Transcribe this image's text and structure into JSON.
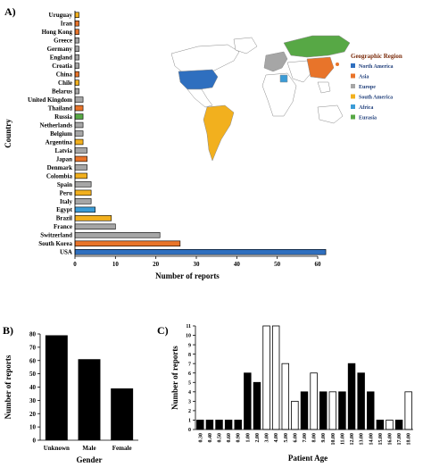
{
  "colors": {
    "North America": "#2f6fbf",
    "Asia": "#e8742a",
    "Europe": "#a6a6a6",
    "South America": "#f2b01e",
    "Africa": "#3b9bd6",
    "Eurasia": "#57a845"
  },
  "charts": [
    {
      "panel": "A)",
      "type": "bar",
      "orientation": "horizontal",
      "xlabel": "Number of reports",
      "ylabel": "Country",
      "xlim": [
        0,
        60
      ],
      "xticks": [
        0,
        10,
        20,
        30,
        40,
        50,
        60
      ],
      "categories": [
        "Uruguay",
        "Iran",
        "Hong Kong",
        "Greece",
        "Germany",
        "England",
        "Croatia",
        "China",
        "Chile",
        "Belarus",
        "United Kingdom",
        "Thailand",
        "Russia",
        "Netherlands",
        "Belgium",
        "Argentina",
        "Latvia",
        "Japan",
        "Denmark",
        "Colombia",
        "Spain",
        "Peru",
        "Italy",
        "Egypt",
        "Brazil",
        "France",
        "Switzerland",
        "South Korea",
        "USA"
      ],
      "values": [
        1,
        1,
        1,
        1,
        1,
        1,
        1,
        1,
        1,
        1,
        2,
        2,
        2,
        2,
        2,
        2,
        3,
        3,
        3,
        3,
        4,
        4,
        4,
        5,
        9,
        10,
        21,
        26,
        62
      ],
      "regions": [
        "South America",
        "Asia",
        "Asia",
        "Europe",
        "Europe",
        "Europe",
        "Europe",
        "Asia",
        "South America",
        "Europe",
        "Europe",
        "Asia",
        "Eurasia",
        "Europe",
        "Europe",
        "South America",
        "Europe",
        "Asia",
        "Europe",
        "South America",
        "Europe",
        "South America",
        "Europe",
        "Africa",
        "South America",
        "Europe",
        "Europe",
        "Asia",
        "North America"
      ],
      "legend": {
        "title": "Geographic Region",
        "entries": [
          "North America",
          "Asia",
          "Europe",
          "South America",
          "Africa",
          "Eurasia"
        ]
      }
    },
    {
      "panel": "B)",
      "type": "bar",
      "xlabel": "Gender",
      "ylabel": "Number of reports",
      "ylim": [
        0,
        80
      ],
      "yticks": [
        0,
        10,
        20,
        30,
        40,
        50,
        60,
        70,
        80
      ],
      "categories": [
        "Unknown",
        "Male",
        "Female"
      ],
      "values": [
        79,
        61,
        39
      ]
    },
    {
      "panel": "C)",
      "type": "bar",
      "xlabel": "Patient Age",
      "ylabel": "Number of reports",
      "ylim": [
        0,
        11
      ],
      "yticks": [
        0,
        1,
        2,
        3,
        4,
        5,
        6,
        7,
        8,
        9,
        10,
        11
      ],
      "categories": [
        "0.30",
        "0.40",
        "0.50",
        "0.60",
        "0.90",
        "1.00",
        "2.00",
        "3.00",
        "4.00",
        "5.00",
        "6.00",
        "7.00",
        "8.00",
        "9.00",
        "10.00",
        "11.00",
        "12.00",
        "13.00",
        "14.00",
        "15.00",
        "16.00",
        "17.00",
        "18.00"
      ],
      "values": [
        1,
        1,
        1,
        1,
        1,
        6,
        5,
        11,
        11,
        7,
        3,
        4,
        6,
        4,
        4,
        4,
        7,
        6,
        4,
        1,
        1,
        1,
        4
      ],
      "fills": [
        "black",
        "black",
        "black",
        "black",
        "black",
        "black",
        "black",
        "white",
        "white",
        "white",
        "white",
        "black",
        "white",
        "black",
        "white",
        "black",
        "black",
        "black",
        "black",
        "black",
        "white",
        "black",
        "white"
      ]
    }
  ]
}
